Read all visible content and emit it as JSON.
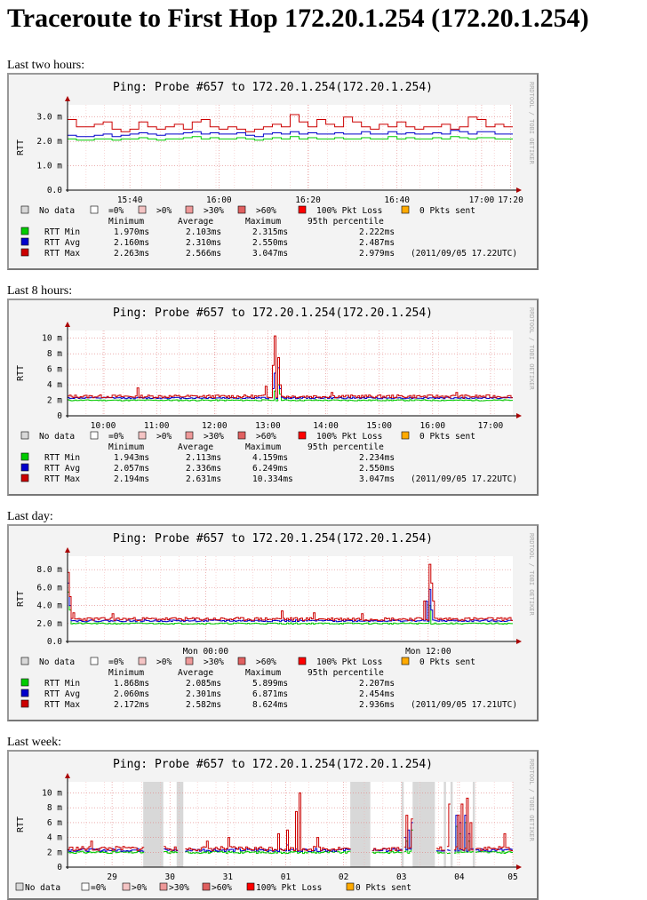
{
  "page_title": "Traceroute to First Hop 172.20.1.254 (172.20.1.254)",
  "colors": {
    "min": "#00cc00",
    "avg": "#0000cc",
    "max": "#cc0000",
    "loss_bg": "#d8d8d8",
    "grid_minor": "#f0b0b0",
    "grid_major": "#e08080"
  },
  "legend_status": [
    {
      "label": "No data",
      "color": "#d8d8d8"
    },
    {
      "label": "=0%",
      "color": "#ffffff"
    },
    {
      "label": ">0%",
      "color": "#f4c4c4"
    },
    {
      "label": ">30%",
      "color": "#ee9999"
    },
    {
      "label": ">60%",
      "color": "#e06060"
    },
    {
      "label": "100% Pkt Loss",
      "color": "#ff0000"
    },
    {
      "label": "0 Pkts sent",
      "color": "#ffaa00"
    }
  ],
  "stats_header": {
    "min": "Minimum",
    "avg": "Average",
    "max": "Maximum",
    "p95": "95th percentile"
  },
  "sidebar_text": "RRDTOOL / TOBI OETIKER",
  "y_axis_label": "RTT",
  "chart_data": [
    {
      "section_label": "Last two hours:",
      "type": "line",
      "title": "Ping: Probe #657 to 172.20.1.254(172.20.1.254)",
      "ylabel": "RTT",
      "ylim": [
        0,
        3.5
      ],
      "yticks": [
        0,
        1,
        2,
        3
      ],
      "ytick_labels": [
        "0.0",
        "1.0 m",
        "2.0 m",
        "3.0 m"
      ],
      "xticks": [
        0.14,
        0.34,
        0.54,
        0.74,
        0.93
      ],
      "xtick_labels": [
        "15:40",
        "16:00",
        "16:20",
        "16:40",
        "17:00"
      ],
      "xtick_labels_extra": [
        "17:20"
      ],
      "x_range_minutes": 120,
      "series": [
        {
          "name": "RTT Min",
          "key": "min",
          "values": [
            2.1,
            2.05,
            2.05,
            2.1,
            2.1,
            2.05,
            2.1,
            2.1,
            2.15,
            2.1,
            2.05,
            2.1,
            2.1,
            2.15,
            2.2,
            2.1,
            2.15,
            2.1,
            2.1,
            2.15,
            2.1,
            2.05,
            2.1,
            2.15,
            2.1,
            2.2,
            2.1,
            2.15,
            2.1,
            2.1,
            2.15,
            2.1,
            2.1,
            2.15,
            2.1,
            2.1,
            2.2,
            2.1,
            2.15,
            2.1,
            2.1,
            2.15,
            2.1,
            2.2,
            2.15,
            2.1,
            2.15,
            2.15,
            2.1,
            2.1
          ]
        },
        {
          "name": "RTT Avg",
          "key": "avg",
          "values": [
            2.25,
            2.2,
            2.2,
            2.25,
            2.3,
            2.2,
            2.25,
            2.3,
            2.35,
            2.3,
            2.25,
            2.3,
            2.3,
            2.35,
            2.4,
            2.3,
            2.35,
            2.3,
            2.3,
            2.35,
            2.25,
            2.2,
            2.3,
            2.35,
            2.3,
            2.4,
            2.3,
            2.35,
            2.3,
            2.3,
            2.35,
            2.3,
            2.3,
            2.4,
            2.3,
            2.3,
            2.4,
            2.3,
            2.35,
            2.3,
            2.3,
            2.35,
            2.3,
            2.45,
            2.4,
            2.3,
            2.4,
            2.4,
            2.3,
            2.3
          ]
        },
        {
          "name": "RTT Max",
          "key": "max",
          "values": [
            2.9,
            2.6,
            2.6,
            2.7,
            2.8,
            2.5,
            2.4,
            2.5,
            2.8,
            2.6,
            2.5,
            2.6,
            2.7,
            2.5,
            2.8,
            2.9,
            2.6,
            2.5,
            2.6,
            2.5,
            2.4,
            2.5,
            2.6,
            2.7,
            2.6,
            3.1,
            2.8,
            2.6,
            2.9,
            2.7,
            2.6,
            3.0,
            2.8,
            2.6,
            2.5,
            2.7,
            2.6,
            2.8,
            2.6,
            2.5,
            2.6,
            2.6,
            2.7,
            2.5,
            2.6,
            3.0,
            2.9,
            2.6,
            2.7,
            2.6
          ]
        }
      ],
      "loss_bands": [],
      "stats": [
        {
          "name": "RTT Min",
          "key": "min",
          "min": "1.970ms",
          "avg": "2.103ms",
          "max": "2.315ms",
          "p95": "2.222ms",
          "note": ""
        },
        {
          "name": "RTT Avg",
          "key": "avg",
          "min": "2.160ms",
          "avg": "2.310ms",
          "max": "2.550ms",
          "p95": "2.487ms",
          "note": ""
        },
        {
          "name": "RTT Max",
          "key": "max",
          "min": "2.263ms",
          "avg": "2.566ms",
          "max": "3.047ms",
          "p95": "2.979ms",
          "note": "(2011/09/05 17.22UTC)"
        }
      ]
    },
    {
      "section_label": "Last 8 hours:",
      "type": "line",
      "title": "Ping: Probe #657 to 172.20.1.254(172.20.1.254)",
      "ylabel": "RTT",
      "ylim": [
        0,
        11
      ],
      "yticks": [
        0,
        2,
        4,
        6,
        8,
        10
      ],
      "ytick_labels": [
        "0",
        "2 m",
        "4 m",
        "6 m",
        "8 m",
        "10 m"
      ],
      "xticks": [
        0.08,
        0.2,
        0.33,
        0.45,
        0.58,
        0.7,
        0.82,
        0.95
      ],
      "xtick_labels": [
        "10:00",
        "11:00",
        "12:00",
        "13:00",
        "14:00",
        "15:00",
        "16:00",
        "17:00"
      ],
      "series": [
        {
          "name": "RTT Min",
          "key": "min",
          "spikes": [
            [
              0.465,
              3.2
            ],
            [
              0.47,
              4.0
            ],
            [
              0.475,
              2.8
            ]
          ],
          "base": 2.0,
          "noise": 0.15
        },
        {
          "name": "RTT Avg",
          "key": "avg",
          "spikes": [
            [
              0.46,
              3.5
            ],
            [
              0.465,
              5.5
            ],
            [
              0.47,
              6.2
            ],
            [
              0.475,
              3.5
            ]
          ],
          "base": 2.3,
          "noise": 0.2
        },
        {
          "name": "RTT Max",
          "key": "max",
          "spikes": [
            [
              0.155,
              3.6
            ],
            [
              0.445,
              3.8
            ],
            [
              0.46,
              6.5
            ],
            [
              0.465,
              10.3
            ],
            [
              0.47,
              7.5
            ],
            [
              0.475,
              4.0
            ],
            [
              0.59,
              3.0
            ],
            [
              0.87,
              3.0
            ]
          ],
          "base": 2.5,
          "noise": 0.4
        }
      ],
      "loss_bands": [],
      "stats": [
        {
          "name": "RTT Min",
          "key": "min",
          "min": "1.943ms",
          "avg": "2.113ms",
          "max": "4.159ms",
          "p95": "2.234ms",
          "note": ""
        },
        {
          "name": "RTT Avg",
          "key": "avg",
          "min": "2.057ms",
          "avg": "2.336ms",
          "max": "6.249ms",
          "p95": "2.550ms",
          "note": ""
        },
        {
          "name": "RTT Max",
          "key": "max",
          "min": "2.194ms",
          "avg": "2.631ms",
          "max": "10.334ms",
          "p95": "3.047ms",
          "note": "(2011/09/05 17.22UTC)"
        }
      ]
    },
    {
      "section_label": "Last day:",
      "type": "line",
      "title": "Ping: Probe #657 to 172.20.1.254(172.20.1.254)",
      "ylabel": "RTT",
      "ylim": [
        0,
        9.5
      ],
      "yticks": [
        0,
        2,
        4,
        6,
        8
      ],
      "ytick_labels": [
        "0.0",
        "2.0 m",
        "4.0 m",
        "6.0 m",
        "8.0 m"
      ],
      "xticks": [
        0.31,
        0.81
      ],
      "xtick_labels": [
        "Mon 00:00",
        "Mon 12:00"
      ],
      "series": [
        {
          "name": "RTT Min",
          "key": "min",
          "spikes": [
            [
              0.0,
              5.5
            ],
            [
              0.005,
              3.5
            ],
            [
              0.81,
              4.0
            ]
          ],
          "base": 2.0,
          "noise": 0.15
        },
        {
          "name": "RTT Avg",
          "key": "avg",
          "spikes": [
            [
              0.0,
              6.5
            ],
            [
              0.005,
              4.0
            ],
            [
              0.805,
              4.5
            ],
            [
              0.81,
              5.8
            ],
            [
              0.815,
              3.5
            ]
          ],
          "base": 2.3,
          "noise": 0.2
        },
        {
          "name": "RTT Max",
          "key": "max",
          "spikes": [
            [
              0.0,
              7.7
            ],
            [
              0.005,
              5.0
            ],
            [
              0.01,
              3.2
            ],
            [
              0.1,
              3.1
            ],
            [
              0.48,
              3.4
            ],
            [
              0.55,
              3.2
            ],
            [
              0.66,
              3.1
            ],
            [
              0.8,
              4.5
            ],
            [
              0.81,
              8.6
            ],
            [
              0.815,
              6.5
            ],
            [
              0.82,
              4.5
            ]
          ],
          "base": 2.5,
          "noise": 0.35
        }
      ],
      "loss_bands": [],
      "stats": [
        {
          "name": "RTT Min",
          "key": "min",
          "min": "1.868ms",
          "avg": "2.085ms",
          "max": "5.899ms",
          "p95": "2.207ms",
          "note": ""
        },
        {
          "name": "RTT Avg",
          "key": "avg",
          "min": "2.060ms",
          "avg": "2.301ms",
          "max": "6.871ms",
          "p95": "2.454ms",
          "note": ""
        },
        {
          "name": "RTT Max",
          "key": "max",
          "min": "2.172ms",
          "avg": "2.582ms",
          "max": "8.624ms",
          "p95": "2.936ms",
          "note": "(2011/09/05 17.21UTC)"
        }
      ]
    },
    {
      "section_label": "Last week:",
      "type": "line",
      "title": "Ping: Probe #657 to 172.20.1.254(172.20.1.254)",
      "ylabel": "RTT",
      "ylim": [
        0,
        11.5
      ],
      "yticks": [
        0,
        2,
        4,
        6,
        8,
        10
      ],
      "ytick_labels": [
        "0",
        "2 m",
        "4 m",
        "6 m",
        "8 m",
        "10 m"
      ],
      "xticks": [
        0.12,
        0.25,
        0.38,
        0.51,
        0.64,
        0.77,
        0.9
      ],
      "xtick_labels": [
        "29",
        "30",
        "31",
        "01",
        "02",
        "03",
        "04",
        "05"
      ],
      "xtick_positions": [
        0.1,
        0.23,
        0.36,
        0.49,
        0.62,
        0.75,
        0.88,
        1.0
      ],
      "series": [
        {
          "name": "RTT Min",
          "key": "min",
          "spikes": [
            [
              0.76,
              3.5
            ],
            [
              0.77,
              5.0
            ],
            [
              0.86,
              4.0
            ],
            [
              0.87,
              5.5
            ],
            [
              0.88,
              4.5
            ],
            [
              0.89,
              6.0
            ],
            [
              0.9,
              3.5
            ]
          ],
          "base": 2.0,
          "noise": 0.3
        },
        {
          "name": "RTT Avg",
          "key": "avg",
          "spikes": [
            [
              0.49,
              3.0
            ],
            [
              0.755,
              4.0
            ],
            [
              0.765,
              5.0
            ],
            [
              0.77,
              6.0
            ],
            [
              0.86,
              5.5
            ],
            [
              0.87,
              7.0
            ],
            [
              0.88,
              6.0
            ],
            [
              0.89,
              7.0
            ],
            [
              0.9,
              4.5
            ]
          ],
          "base": 2.3,
          "noise": 0.4
        },
        {
          "name": "RTT Max",
          "key": "max",
          "spikes": [
            [
              0.05,
              3.5
            ],
            [
              0.2,
              4.5
            ],
            [
              0.21,
              5.0
            ],
            [
              0.31,
              3.5
            ],
            [
              0.36,
              4.0
            ],
            [
              0.47,
              4.5
            ],
            [
              0.49,
              5.0
            ],
            [
              0.51,
              7.5
            ],
            [
              0.52,
              10.0
            ],
            [
              0.56,
              4.0
            ],
            [
              0.75,
              5.5
            ],
            [
              0.76,
              7.0
            ],
            [
              0.77,
              6.5
            ],
            [
              0.855,
              8.5
            ],
            [
              0.865,
              9.5
            ],
            [
              0.875,
              7.0
            ],
            [
              0.885,
              8.5
            ],
            [
              0.895,
              9.3
            ],
            [
              0.905,
              6.0
            ],
            [
              0.98,
              4.5
            ]
          ],
          "base": 2.5,
          "noise": 0.6
        }
      ],
      "loss_bands": [
        [
          0.17,
          0.215
        ],
        [
          0.245,
          0.26
        ],
        [
          0.635,
          0.68
        ],
        [
          0.75,
          0.755
        ],
        [
          0.775,
          0.79
        ],
        [
          0.79,
          0.825
        ],
        [
          0.845,
          0.85
        ],
        [
          0.86,
          0.865
        ],
        [
          0.91,
          0.915
        ]
      ],
      "stats": []
    }
  ]
}
